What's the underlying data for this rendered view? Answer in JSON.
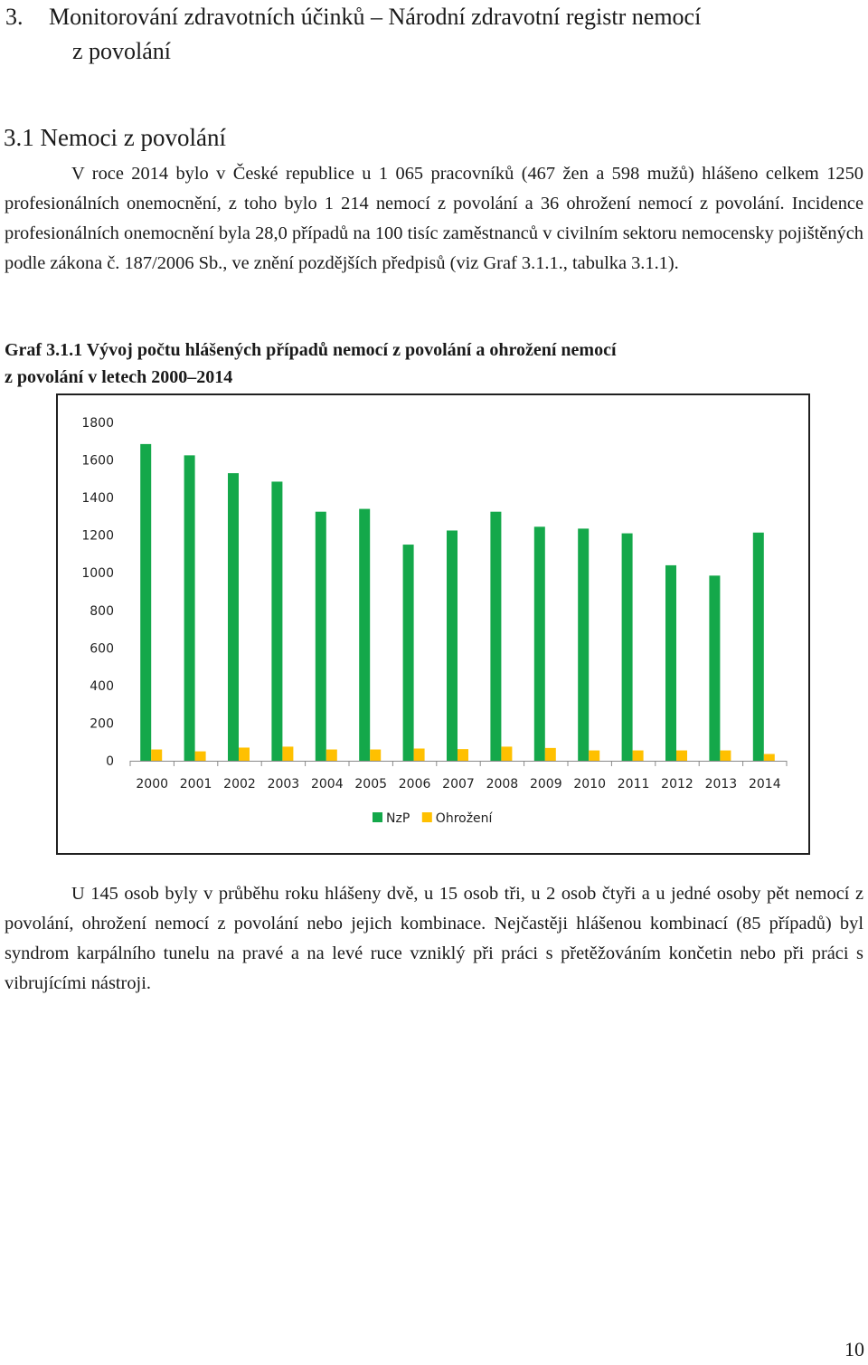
{
  "section": {
    "number": "3.",
    "title_line1": "Monitorování zdravotních účinků – Národní zdravotní registr nemocí",
    "title_line2": "z povolání"
  },
  "subsection": {
    "title": "3.1 Nemoci z povolání"
  },
  "paragraph1": "V roce 2014 bylo v České republice u 1 065 pracovníků (467 žen a 598 mužů) hlášeno celkem 1250 profesionálních onemocnění, z toho bylo 1 214 nemocí z povolání a 36 ohrožení nemocí z povolání. Incidence profesionálních onemocnění byla 28,0 případů na 100 tisíc zaměstnanců v civilním sektoru nemocensky pojištěných podle zákona č. 187/2006 Sb., ve znění pozdějších předpisů (viz Graf 3.1.1., tabulka 3.1.1).",
  "figure_caption_line1": "Graf  3.1.1 Vývoj počtu hlášených případů nemocí z povolání a ohrožení nemocí",
  "figure_caption_line2": "z povolání v letech 2000–2014",
  "colors": {
    "nzp": "#14a84a",
    "ohrozeni": "#ffc000"
  },
  "chart_data": {
    "type": "bar",
    "title": "",
    "xlabel": "",
    "ylabel": "",
    "ylim": [
      0,
      1800
    ],
    "yticks": [
      0,
      200,
      400,
      600,
      800,
      1000,
      1200,
      1400,
      1600,
      1800
    ],
    "categories": [
      "2000",
      "2001",
      "2002",
      "2003",
      "2004",
      "2005",
      "2006",
      "2007",
      "2008",
      "2009",
      "2010",
      "2011",
      "2012",
      "2013",
      "2014"
    ],
    "series": [
      {
        "name": "NzP",
        "color": "#14a84a",
        "values": [
          1685,
          1625,
          1530,
          1485,
          1325,
          1340,
          1150,
          1225,
          1325,
          1245,
          1235,
          1210,
          1040,
          985,
          1214
        ]
      },
      {
        "name": "Ohrožení",
        "color": "#ffc000",
        "values": [
          60,
          50,
          70,
          75,
          60,
          60,
          65,
          62,
          75,
          68,
          55,
          55,
          55,
          55,
          36
        ]
      }
    ],
    "legend_position": "bottom",
    "grid": false
  },
  "paragraph2": "U 145 osob byly v průběhu roku hlášeny dvě, u 15 osob tři, u 2 osob čtyři a u jedné osoby pět nemocí z povolání, ohrožení nemocí z povolání nebo jejich kombinace. Nejčastěji hlášenou kombinací (85 případů) byl syndrom karpálního tunelu na pravé a na levé ruce vzniklý při práci s přetěžováním končetin nebo při práci s vibrujícími nástroji.",
  "page_number": "10"
}
